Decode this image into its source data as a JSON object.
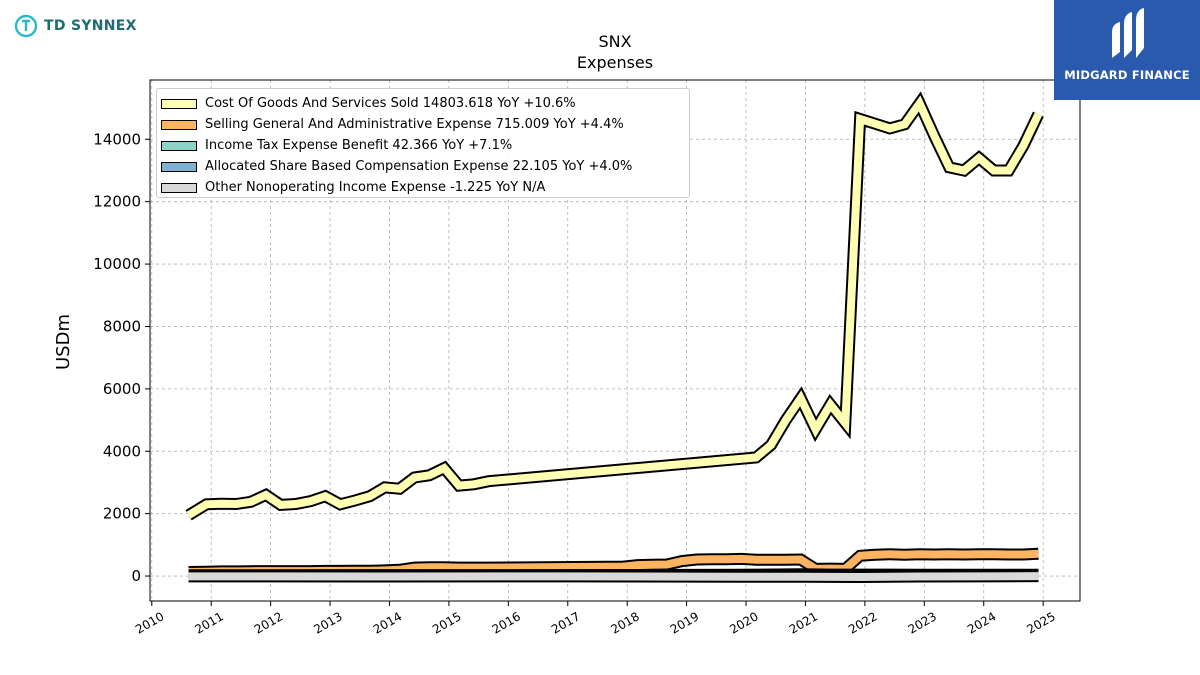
{
  "branding": {
    "left_logo_text": "TD SYNNEX",
    "right_logo_text": "MIDGARD FINANCE"
  },
  "chart_data": {
    "type": "area",
    "title": "SNX",
    "subtitle": "Expenses",
    "ylabel": "USDm",
    "xlabel": "",
    "ylim": [
      -800,
      15900
    ],
    "xlim": [
      2009.97,
      2025.62
    ],
    "grid": true,
    "legend_position": "top-left",
    "x_ticks": [
      2010,
      2011,
      2012,
      2013,
      2014,
      2015,
      2016,
      2017,
      2018,
      2019,
      2020,
      2021,
      2022,
      2023,
      2024,
      2025
    ],
    "x_tick_labels": [
      "2010",
      "2011",
      "2012",
      "2013",
      "2014",
      "2015",
      "2016",
      "2017",
      "2018",
      "2019",
      "2020",
      "2021",
      "2022",
      "2023",
      "2024",
      "2025"
    ],
    "y_ticks": [
      0,
      2000,
      4000,
      6000,
      8000,
      10000,
      12000,
      14000
    ],
    "y_tick_labels": [
      "0",
      "2000",
      "4000",
      "6000",
      "8000",
      "10000",
      "12000",
      "14000"
    ],
    "series": [
      {
        "name": "Cost Of Goods And Services Sold",
        "legend_label": "Cost Of Goods And Services Sold  14803.618 YoY +10.6%",
        "color": "#ffffb3",
        "x": [
          2010.62,
          2010.92,
          2011.17,
          2011.42,
          2011.67,
          2011.92,
          2012.17,
          2012.42,
          2012.67,
          2012.92,
          2013.17,
          2013.42,
          2013.67,
          2013.92,
          2014.17,
          2014.42,
          2014.67,
          2014.92,
          2015.17,
          2015.42,
          2015.67,
          2020.17,
          2020.42,
          2020.67,
          2020.92,
          2021.17,
          2021.42,
          2021.67,
          2021.92,
          2022.17,
          2022.42,
          2022.67,
          2022.92,
          2023.17,
          2023.42,
          2023.67,
          2023.92,
          2024.17,
          2024.42,
          2024.67,
          2024.92
        ],
        "values": [
          1950,
          2300,
          2320,
          2310,
          2380,
          2600,
          2280,
          2310,
          2400,
          2560,
          2300,
          2420,
          2560,
          2840,
          2800,
          3160,
          3230,
          3460,
          2900,
          2940,
          3040,
          3800,
          4200,
          5000,
          5700,
          4700,
          5500,
          4900,
          14650,
          14500,
          14350,
          14480,
          15150,
          14100,
          13100,
          13000,
          13400,
          13000,
          13000,
          13800,
          14803.618
        ]
      },
      {
        "name": "Selling General And Administrative Expense",
        "legend_label": "Selling General And Administrative Expense  715.009 YoY +4.4%",
        "color": "#fdb462",
        "x": [
          2010.62,
          2010.92,
          2011.17,
          2011.42,
          2011.67,
          2011.92,
          2012.17,
          2012.42,
          2012.67,
          2012.92,
          2013.17,
          2013.42,
          2013.67,
          2013.92,
          2014.17,
          2014.42,
          2014.67,
          2014.92,
          2015.17,
          2015.42,
          2015.67,
          2017.67,
          2017.92,
          2018.17,
          2018.42,
          2018.67,
          2018.92,
          2019.17,
          2019.42,
          2019.67,
          2019.92,
          2020.17,
          2020.42,
          2020.67,
          2020.92,
          2021.17,
          2021.42,
          2021.67,
          2021.92,
          2022.17,
          2022.42,
          2022.67,
          2022.92,
          2023.17,
          2023.42,
          2023.67,
          2023.92,
          2024.17,
          2024.42,
          2024.67,
          2024.92
        ],
        "values": [
          130,
          140,
          150,
          150,
          155,
          160,
          160,
          158,
          160,
          165,
          165,
          168,
          170,
          180,
          200,
          270,
          280,
          285,
          270,
          270,
          270,
          300,
          300,
          350,
          360,
          370,
          480,
          530,
          540,
          540,
          550,
          520,
          520,
          520,
          530,
          230,
          240,
          230,
          650,
          680,
          700,
          680,
          700,
          690,
          700,
          690,
          700,
          700,
          690,
          690,
          715.009
        ]
      },
      {
        "name": "Income Tax Expense Benefit",
        "legend_label": "Income Tax Expense Benefit  42.366 YoY +7.1%",
        "color": "#8dd3c7",
        "x": [
          2010.62,
          2011.92,
          2013.92,
          2015.92,
          2017.92,
          2019.92,
          2020.92,
          2021.42,
          2021.92,
          2022.92,
          2023.92,
          2024.92
        ],
        "values": [
          25,
          28,
          30,
          30,
          32,
          40,
          60,
          45,
          45,
          42,
          42,
          42.366
        ]
      },
      {
        "name": "Allocated Share Based Compensation Expense",
        "legend_label": "Allocated Share Based Compensation Expense  22.105 YoY +4.0%",
        "color": "#80b1d3",
        "x": [
          2010.62,
          2012.92,
          2015.92,
          2018.92,
          2020.92,
          2021.92,
          2023.92,
          2024.92
        ],
        "values": [
          5,
          6,
          6,
          8,
          10,
          20,
          21,
          22.105
        ]
      },
      {
        "name": "Other Nonoperating Income Expense",
        "legend_label": "Other Nonoperating Income Expense  -1.225 YoY N/A",
        "color": "#d9d9d9",
        "x": [
          2010.62,
          2013.92,
          2016.92,
          2019.92,
          2020.92,
          2021.92,
          2022.92,
          2023.92,
          2024.92
        ],
        "values": [
          -10,
          -15,
          -12,
          -20,
          -25,
          -30,
          -15,
          -10,
          -1.225
        ]
      }
    ]
  }
}
